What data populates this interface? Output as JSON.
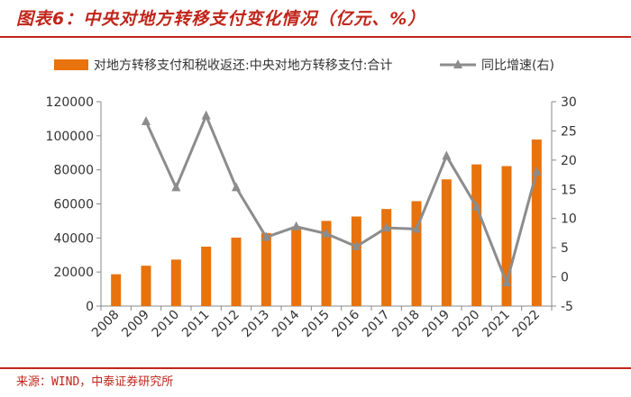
{
  "header": {
    "title": "图表6：中央对地方转移支付变化情况（亿元、%）"
  },
  "footer": {
    "source": "来源：WIND，中泰证券研究所"
  },
  "colors": {
    "bar": "#E8720C",
    "line": "#8C8C8C",
    "accent": "#C0251A",
    "axis": "#888888"
  },
  "chart_data": {
    "type": "bar",
    "categories": [
      "2008",
      "2009",
      "2010",
      "2011",
      "2012",
      "2013",
      "2014",
      "2015",
      "2016",
      "2017",
      "2018",
      "2019",
      "2020",
      "2021",
      "2022"
    ],
    "series": [
      {
        "name": "对地方转移支付和税收返还:中央对地方转移支付:合计",
        "kind": "bar",
        "axis": "left",
        "values": [
          18700,
          23700,
          27300,
          34900,
          40200,
          42900,
          46600,
          50000,
          52600,
          57000,
          61600,
          74400,
          83200,
          82200,
          97800
        ]
      },
      {
        "name": "同比增速(右)",
        "kind": "line",
        "axis": "right",
        "values": [
          null,
          26.6,
          15.3,
          27.6,
          15.3,
          6.8,
          8.6,
          7.4,
          5.2,
          8.4,
          8.2,
          20.7,
          12.0,
          -1.0,
          18.0
        ]
      }
    ],
    "ylim_left": [
      0,
      120000
    ],
    "yticks_left": [
      0,
      20000,
      40000,
      60000,
      80000,
      100000,
      120000
    ],
    "ylim_right": [
      -5,
      30
    ],
    "yticks_right": [
      -5,
      0,
      5,
      10,
      15,
      20,
      25,
      30
    ],
    "legend_position": "top",
    "xlabel": "",
    "ylabel": ""
  }
}
